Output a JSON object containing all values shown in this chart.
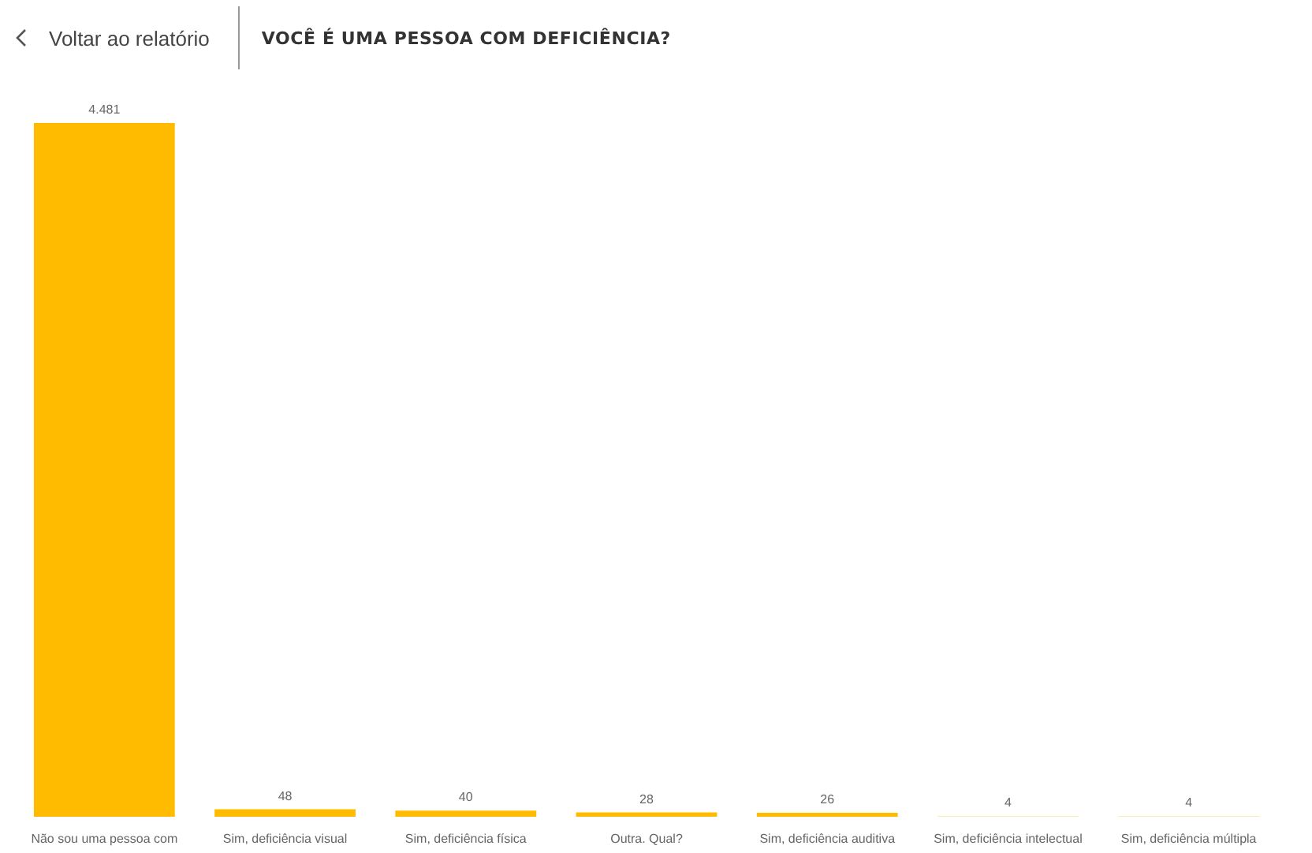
{
  "chart_data": {
    "type": "bar",
    "title": "VOCÊ É UMA PESSOA COM DEFICIÊNCIA?",
    "annotations": [
      "Voltar ao relatório"
    ],
    "categories": [
      "Não sou uma pessoa com",
      "Sim, deficiência visual",
      "Sim, deficiência física",
      "Outra. Qual?",
      "Sim, deficiência auditiva",
      "Sim, deficiência intelectual",
      "Sim, deficiência múltipla"
    ],
    "values": [
      4481,
      48,
      40,
      28,
      26,
      4,
      4
    ],
    "colors": [
      "#ffbb00",
      "#ffbb00",
      "#ffbb00",
      "#ffbb00",
      "#ffbb00",
      "#fde49a",
      "#fde49a"
    ],
    "value_labels": [
      "4.481",
      "48",
      "40",
      "28",
      "26",
      "4",
      "4"
    ],
    "grid": false
  }
}
